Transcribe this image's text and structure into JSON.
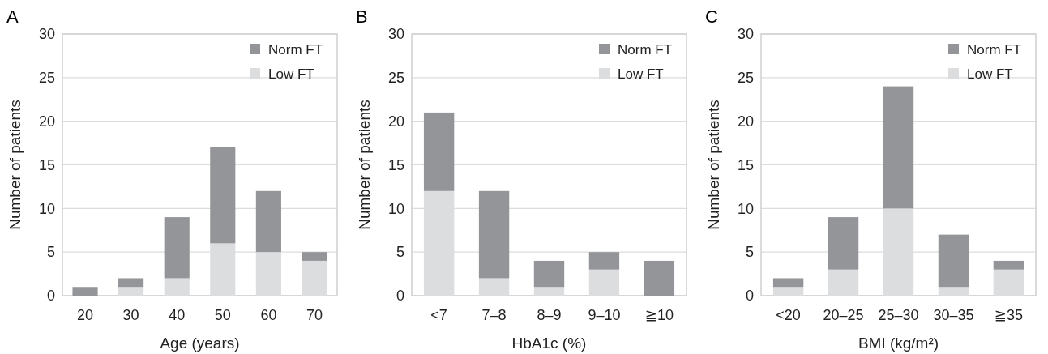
{
  "chart_data": [
    {
      "type": "bar",
      "title": "A",
      "xlabel": "Age (years)",
      "ylabel": "Number of patients",
      "categories": [
        "20",
        "30",
        "40",
        "50",
        "60",
        "70"
      ],
      "stacked": true,
      "series": [
        {
          "name": "Low FT",
          "color": "#dcdddf",
          "values": [
            0,
            1,
            2,
            6,
            5,
            4
          ]
        },
        {
          "name": "Norm FT",
          "color": "#939598",
          "values": [
            1,
            1,
            7,
            11,
            7,
            1
          ]
        }
      ],
      "ylim": [
        0,
        30
      ],
      "yticks": [
        0,
        5,
        10,
        15,
        20,
        25,
        30
      ],
      "grid": "y",
      "legend": "top right"
    },
    {
      "type": "bar",
      "title": "B",
      "xlabel": "HbA1c (%)",
      "ylabel": "Number of patients",
      "categories": [
        "<7",
        "7–8",
        "8–9",
        "9–10",
        "≧10"
      ],
      "stacked": true,
      "series": [
        {
          "name": "Low FT",
          "color": "#dcdddf",
          "values": [
            12,
            2,
            1,
            3,
            0
          ]
        },
        {
          "name": "Norm FT",
          "color": "#939598",
          "values": [
            9,
            10,
            3,
            2,
            4
          ]
        }
      ],
      "ylim": [
        0,
        30
      ],
      "yticks": [
        0,
        5,
        10,
        15,
        20,
        25,
        30
      ],
      "grid": "y",
      "legend": "top right"
    },
    {
      "type": "bar",
      "title": "C",
      "xlabel": "BMI (kg/m²)",
      "ylabel": "Number of patients",
      "categories": [
        "<20",
        "20–25",
        "25–30",
        "30–35",
        "≧35"
      ],
      "stacked": true,
      "series": [
        {
          "name": "Low FT",
          "color": "#dcdddf",
          "values": [
            1,
            3,
            10,
            1,
            3
          ]
        },
        {
          "name": "Norm FT",
          "color": "#939598",
          "values": [
            1,
            6,
            14,
            6,
            1
          ]
        }
      ],
      "ylim": [
        0,
        30
      ],
      "yticks": [
        0,
        5,
        10,
        15,
        20,
        25,
        30
      ],
      "grid": "y",
      "legend": "top right"
    }
  ]
}
